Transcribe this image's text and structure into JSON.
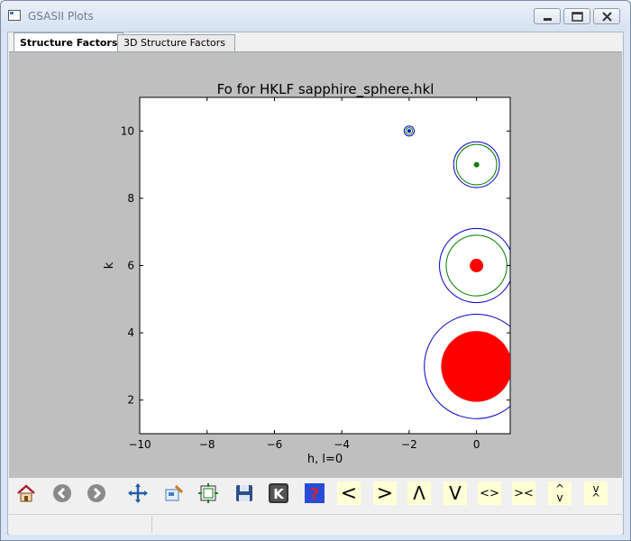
{
  "window": {
    "title": "GSASII Plots"
  },
  "tabs": [
    {
      "label": "Structure Factors",
      "active": true
    },
    {
      "label": "3D Structure Factors",
      "active": false
    }
  ],
  "toolbar": {
    "buttons": [
      {
        "name": "home-icon",
        "label": ""
      },
      {
        "name": "back-icon",
        "label": ""
      },
      {
        "name": "forward-icon",
        "label": ""
      },
      {
        "name": "pan-icon",
        "label": ""
      },
      {
        "name": "zoom-icon",
        "label": ""
      },
      {
        "name": "configure-subplots-icon",
        "label": ""
      },
      {
        "name": "save-icon",
        "label": ""
      },
      {
        "name": "keyboard-k-icon",
        "label": ""
      },
      {
        "name": "help-icon",
        "label": ""
      },
      {
        "name": "shift-left-button",
        "label": "<"
      },
      {
        "name": "shift-right-button",
        "label": ">"
      },
      {
        "name": "shift-up-button",
        "label": "Λ"
      },
      {
        "name": "shift-down-button",
        "label": "V"
      },
      {
        "name": "expand-horizontal-button",
        "label": "<>"
      },
      {
        "name": "shrink-horizontal-button",
        "label": "><"
      },
      {
        "name": "expand-vertical-button",
        "label": "^v"
      },
      {
        "name": "shrink-vertical-button",
        "label": "v^"
      }
    ]
  },
  "status": {
    "text": ""
  },
  "colors": {
    "fo_fill": "#ff0000",
    "fc_outer": "#0000cc",
    "fc_inner": "#007f00",
    "panel_bg": "#bfbfbf"
  },
  "chart_data": {
    "type": "scatter",
    "title": "Fo for HKLF sapphire_sphere.hkl",
    "xlabel": "h, l=0",
    "ylabel": "k",
    "xlim": [
      -10,
      1
    ],
    "ylim": [
      1,
      11
    ],
    "xticks": [
      -10,
      -8,
      -6,
      -4,
      -2,
      0
    ],
    "xtick_labels": [
      "−10",
      "−8",
      "−6",
      "−4",
      "−2",
      "0"
    ],
    "yticks": [
      2,
      4,
      6,
      8,
      10
    ],
    "ytick_labels": [
      "2",
      "4",
      "6",
      "8",
      "10"
    ],
    "grid": false,
    "reflections": [
      {
        "h": 0,
        "k": 3,
        "fo_radius": 1.05,
        "outer_radius": 1.55,
        "inner_radius": null,
        "fill": "red"
      },
      {
        "h": 0,
        "k": 6,
        "fo_radius": 0.2,
        "outer_radius": 1.1,
        "inner_radius": 0.9,
        "fill": "red"
      },
      {
        "h": 0,
        "k": 9,
        "fo_radius": 0.08,
        "outer_radius": 0.68,
        "inner_radius": 0.6,
        "fill": "green"
      },
      {
        "h": -2,
        "k": 10,
        "fo_radius": 0.05,
        "outer_radius": 0.15,
        "inner_radius": 0.1,
        "fill": "blue"
      }
    ]
  }
}
